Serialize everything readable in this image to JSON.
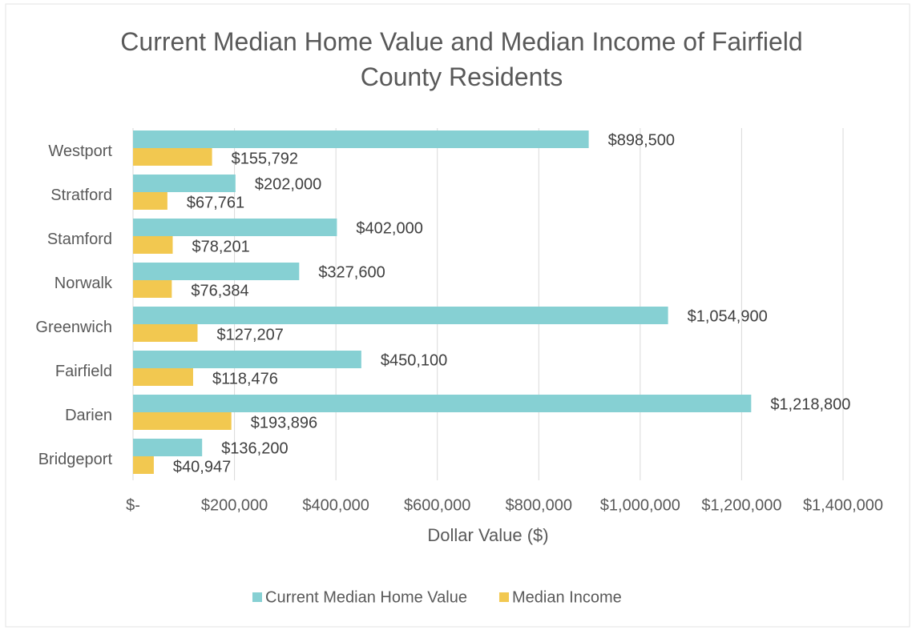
{
  "chart_data": {
    "type": "bar",
    "orientation": "horizontal",
    "title": "Current Median Home Value and Median Income of Fairfield County Residents",
    "x_label": "Dollar Value ($)",
    "categories": [
      "Westport",
      "Stratford",
      "Stamford",
      "Norwalk",
      "Greenwich",
      "Fairfield",
      "Darien",
      "Bridgeport"
    ],
    "series": [
      {
        "name": "Current Median Home Value",
        "color": "#86d0d3",
        "values": [
          898500,
          202000,
          402000,
          327600,
          1054900,
          450100,
          1218800,
          136200
        ],
        "value_labels": [
          "$898,500",
          "$202,000",
          "$402,000",
          "$327,600",
          "$1,054,900",
          "$450,100",
          "$1,218,800",
          "$136,200"
        ]
      },
      {
        "name": "Median Income",
        "color": "#f2c850",
        "values": [
          155792,
          67761,
          78201,
          76384,
          127207,
          118476,
          193896,
          40947
        ],
        "value_labels": [
          "$155,792",
          "$67,761",
          "$78,201",
          "$76,384",
          "$127,207",
          "$118,476",
          "$193,896",
          "$40,947"
        ]
      }
    ],
    "xlim": [
      0,
      1400000
    ],
    "xticks": [
      {
        "value": 0,
        "label": "$-"
      },
      {
        "value": 200000,
        "label": "$200,000"
      },
      {
        "value": 400000,
        "label": "$400,000"
      },
      {
        "value": 600000,
        "label": "$600,000"
      },
      {
        "value": 800000,
        "label": "$800,000"
      },
      {
        "value": 1000000,
        "label": "$1,000,000"
      },
      {
        "value": 1200000,
        "label": "$1,200,000"
      },
      {
        "value": 1400000,
        "label": "$1,400,000"
      }
    ],
    "grid": true,
    "legend": "bottom"
  }
}
